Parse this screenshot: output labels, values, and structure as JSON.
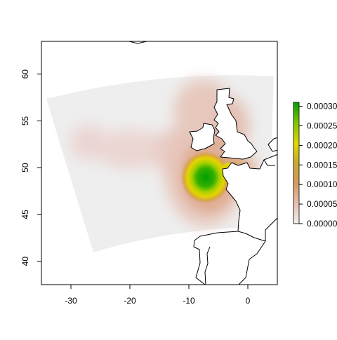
{
  "chart_data": {
    "type": "heatmap",
    "title": "",
    "xlabel": "",
    "ylabel": "",
    "xlim": [
      -35,
      5
    ],
    "ylim": [
      37.5,
      63.5
    ],
    "x_ticks": [
      "-30",
      "-20",
      "-10",
      "0"
    ],
    "y_ticks": [
      "40",
      "45",
      "50",
      "55",
      "60"
    ],
    "colorbar": {
      "ticks": [
        "0.00000",
        "0.00005",
        "0.00010",
        "0.00015",
        "0.00020",
        "0.00025",
        "0.00030"
      ],
      "range": [
        0,
        0.00031
      ],
      "colors": [
        "#F0F0F0",
        "#E8C3B5",
        "#D49A5E",
        "#C8A830",
        "#E0D800",
        "#80C400",
        "#00A000"
      ]
    },
    "field": {
      "background_value": 0,
      "domain_color": "#EEEEEE",
      "lon_range": [
        -34.5,
        4.2
      ],
      "lat_range": [
        41.2,
        60.3
      ],
      "peak": {
        "lon": -6.8,
        "lat": 49.5,
        "value": 0.0003
      },
      "notable_features": [
        "Celtic Sea maximum",
        "western lobe near -27, 53",
        "plume to North Sea"
      ]
    },
    "coastlines": [
      "British Isles",
      "France",
      "Iberia"
    ]
  }
}
